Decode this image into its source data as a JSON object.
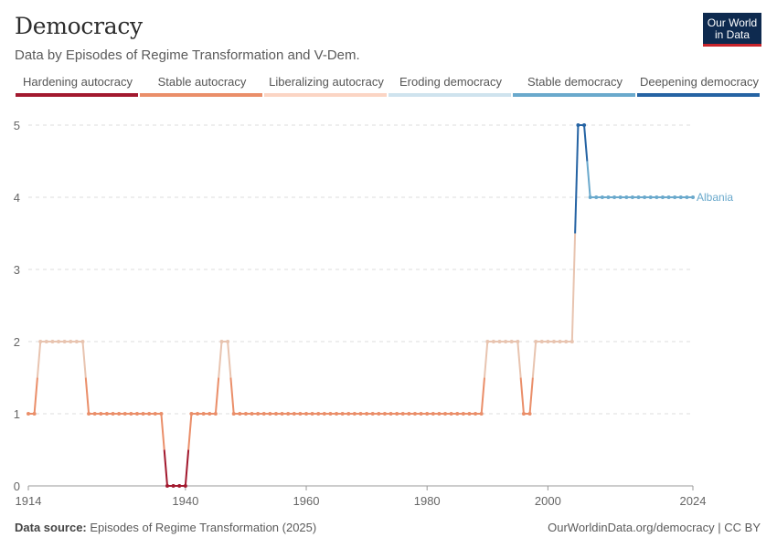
{
  "header": {
    "title": "Democracy",
    "subtitle": "Data by Episodes of Regime Transformation and V-Dem.",
    "logo_line1": "Our World",
    "logo_line2": "in Data"
  },
  "legend": [
    {
      "label": "Hardening autocracy",
      "color": "#a2192e"
    },
    {
      "label": "Stable autocracy",
      "color": "#ea8e69"
    },
    {
      "label": "Liberalizing autocracy",
      "color": "#fbd5c4"
    },
    {
      "label": "Eroding democracy",
      "color": "#cfe3ee"
    },
    {
      "label": "Stable democracy",
      "color": "#6aa9cc"
    },
    {
      "label": "Deepening democracy",
      "color": "#2563a3"
    }
  ],
  "footer": {
    "source_label": "Data source:",
    "source_text": "Episodes of Regime Transformation (2025)",
    "url_text": "OurWorldinData.org/democracy | CC BY"
  },
  "chart_data": {
    "type": "line",
    "xlim": [
      1914,
      2024
    ],
    "ylim": [
      0,
      5
    ],
    "x_ticks": [
      1914,
      1940,
      1960,
      1980,
      2000,
      2024
    ],
    "y_ticks": [
      0,
      1,
      2,
      3,
      4,
      5
    ],
    "grid": true,
    "series": [
      {
        "name": "Albania",
        "color": "#6aa9cc",
        "points": [
          [
            1914,
            1
          ],
          [
            1915,
            1
          ],
          [
            1916,
            2
          ],
          [
            1917,
            2
          ],
          [
            1918,
            2
          ],
          [
            1919,
            2
          ],
          [
            1920,
            2
          ],
          [
            1921,
            2
          ],
          [
            1922,
            2
          ],
          [
            1923,
            2
          ],
          [
            1924,
            1
          ],
          [
            1925,
            1
          ],
          [
            1926,
            1
          ],
          [
            1927,
            1
          ],
          [
            1928,
            1
          ],
          [
            1929,
            1
          ],
          [
            1930,
            1
          ],
          [
            1931,
            1
          ],
          [
            1932,
            1
          ],
          [
            1933,
            1
          ],
          [
            1934,
            1
          ],
          [
            1935,
            1
          ],
          [
            1936,
            1
          ],
          [
            1937,
            0
          ],
          [
            1938,
            0
          ],
          [
            1939,
            0
          ],
          [
            1940,
            0
          ],
          [
            1941,
            1
          ],
          [
            1942,
            1
          ],
          [
            1943,
            1
          ],
          [
            1944,
            1
          ],
          [
            1945,
            1
          ],
          [
            1946,
            2
          ],
          [
            1947,
            2
          ],
          [
            1948,
            1
          ],
          [
            1949,
            1
          ],
          [
            1950,
            1
          ],
          [
            1951,
            1
          ],
          [
            1952,
            1
          ],
          [
            1953,
            1
          ],
          [
            1954,
            1
          ],
          [
            1955,
            1
          ],
          [
            1956,
            1
          ],
          [
            1957,
            1
          ],
          [
            1958,
            1
          ],
          [
            1959,
            1
          ],
          [
            1960,
            1
          ],
          [
            1961,
            1
          ],
          [
            1962,
            1
          ],
          [
            1963,
            1
          ],
          [
            1964,
            1
          ],
          [
            1965,
            1
          ],
          [
            1966,
            1
          ],
          [
            1967,
            1
          ],
          [
            1968,
            1
          ],
          [
            1969,
            1
          ],
          [
            1970,
            1
          ],
          [
            1971,
            1
          ],
          [
            1972,
            1
          ],
          [
            1973,
            1
          ],
          [
            1974,
            1
          ],
          [
            1975,
            1
          ],
          [
            1976,
            1
          ],
          [
            1977,
            1
          ],
          [
            1978,
            1
          ],
          [
            1979,
            1
          ],
          [
            1980,
            1
          ],
          [
            1981,
            1
          ],
          [
            1982,
            1
          ],
          [
            1983,
            1
          ],
          [
            1984,
            1
          ],
          [
            1985,
            1
          ],
          [
            1986,
            1
          ],
          [
            1987,
            1
          ],
          [
            1988,
            1
          ],
          [
            1989,
            1
          ],
          [
            1990,
            2
          ],
          [
            1991,
            2
          ],
          [
            1992,
            2
          ],
          [
            1993,
            2
          ],
          [
            1994,
            2
          ],
          [
            1995,
            2
          ],
          [
            1996,
            1
          ],
          [
            1997,
            1
          ],
          [
            1998,
            2
          ],
          [
            1999,
            2
          ],
          [
            2000,
            2
          ],
          [
            2001,
            2
          ],
          [
            2002,
            2
          ],
          [
            2003,
            2
          ],
          [
            2004,
            2
          ],
          [
            2005,
            5
          ],
          [
            2006,
            5
          ],
          [
            2007,
            4
          ],
          [
            2008,
            4
          ],
          [
            2009,
            4
          ],
          [
            2010,
            4
          ],
          [
            2011,
            4
          ],
          [
            2012,
            4
          ],
          [
            2013,
            4
          ],
          [
            2014,
            4
          ],
          [
            2015,
            4
          ],
          [
            2016,
            4
          ],
          [
            2017,
            4
          ],
          [
            2018,
            4
          ],
          [
            2019,
            4
          ],
          [
            2020,
            4
          ],
          [
            2021,
            4
          ],
          [
            2022,
            4
          ],
          [
            2023,
            4
          ],
          [
            2024,
            4
          ]
        ]
      }
    ],
    "value_colors": {
      "0": "#a2192e",
      "1": "#ea8e69",
      "2": "#e8c4b0",
      "3": "#cfe3ee",
      "4": "#6aa9cc",
      "5": "#2563a3"
    }
  }
}
